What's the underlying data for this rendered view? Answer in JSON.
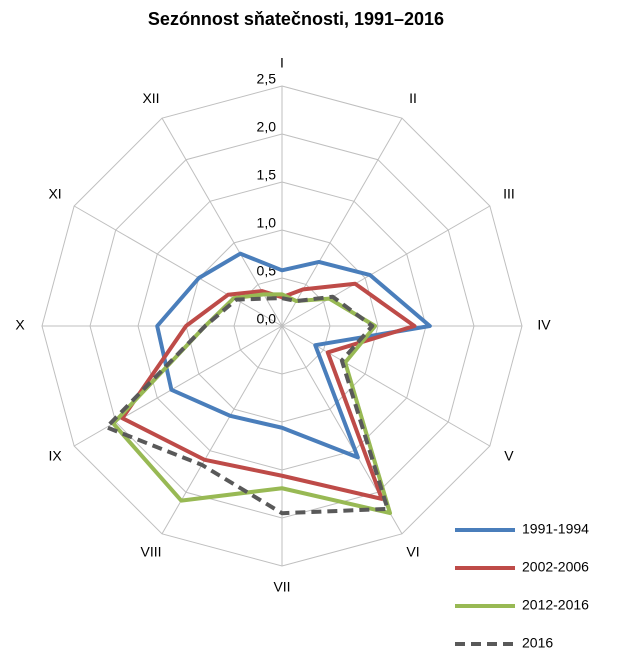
{
  "chart_data": {
    "type": "radar",
    "title": "Sezónnost sňatečnosti, 1991–2016",
    "categories": [
      "I",
      "II",
      "III",
      "IV",
      "V",
      "VI",
      "VII",
      "VIII",
      "IX",
      "X",
      "XI",
      "XII"
    ],
    "ylim": [
      0,
      2.5
    ],
    "yticks": [
      {
        "value": 0,
        "label": "0,0"
      },
      {
        "value": 0.5,
        "label": "0,5"
      },
      {
        "value": 1,
        "label": "1,0"
      },
      {
        "value": 1.5,
        "label": "1,5"
      },
      {
        "value": 2,
        "label": "2,0"
      },
      {
        "value": 2.5,
        "label": "2,5"
      }
    ],
    "grid": true,
    "legend": "bottom-right",
    "series": [
      {
        "name": "1991-1994",
        "color": "#4a7ebb",
        "values": [
          0.58,
          0.77,
          1.06,
          1.54,
          0.4,
          1.58,
          1.06,
          1.08,
          1.33,
          1.3,
          1.0,
          0.87
        ]
      },
      {
        "name": "2002-2006",
        "color": "#be4b48",
        "values": [
          0.3,
          0.44,
          0.88,
          1.38,
          0.55,
          2.08,
          1.56,
          1.61,
          1.92,
          1.0,
          0.65,
          0.42
        ]
      },
      {
        "name": "2012-2016",
        "color": "#98b954",
        "values": [
          0.33,
          0.3,
          0.57,
          0.97,
          0.76,
          2.25,
          1.69,
          2.1,
          2.03,
          0.8,
          0.58,
          0.38
        ]
      },
      {
        "name": "2016",
        "color": "#595959",
        "dashed": true,
        "values": [
          0.29,
          0.3,
          0.61,
          0.94,
          0.72,
          2.2,
          1.95,
          1.67,
          2.11,
          0.8,
          0.55,
          0.33
        ]
      }
    ]
  }
}
